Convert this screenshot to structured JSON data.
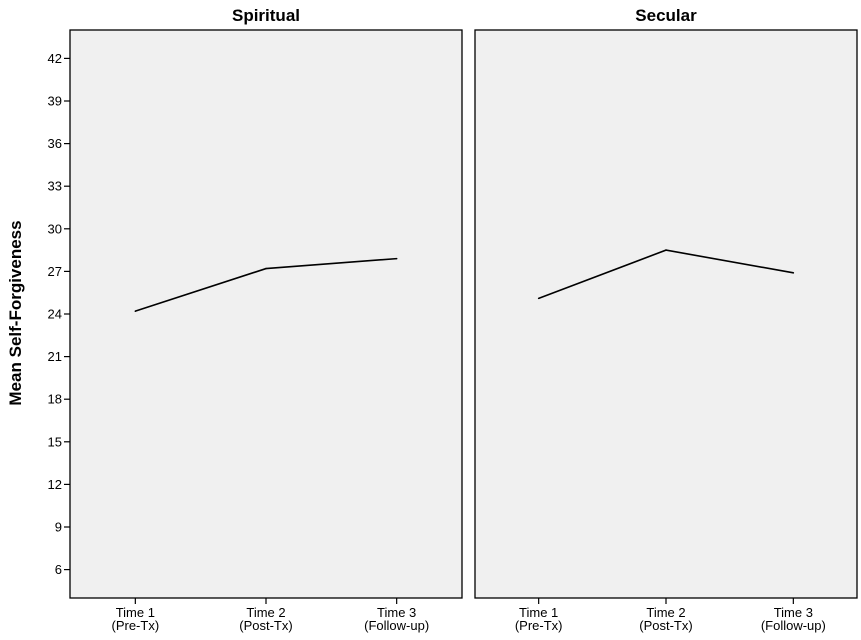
{
  "chart_data": {
    "type": "line",
    "ylabel": "Mean Self-Forgiveness",
    "ylim": [
      4,
      44
    ],
    "yticks": [
      6,
      9,
      12,
      15,
      18,
      21,
      24,
      27,
      30,
      33,
      36,
      39,
      42
    ],
    "grid": false,
    "categories": [
      [
        "Time 1",
        "(Pre-Tx)"
      ],
      [
        "Time 2",
        "(Post-Tx)"
      ],
      [
        "Time 3",
        "(Follow-up)"
      ]
    ],
    "panels": [
      {
        "title": "Spiritual",
        "values": [
          24.2,
          27.2,
          27.9
        ]
      },
      {
        "title": "Secular",
        "values": [
          25.1,
          28.5,
          26.9
        ]
      }
    ],
    "line_color": "#000000",
    "panel_background": "#f0f0f0"
  }
}
